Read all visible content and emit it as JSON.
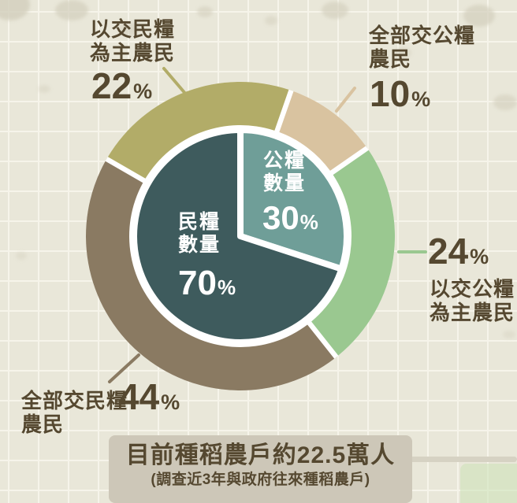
{
  "theme": {
    "bg": "#e9e7d9",
    "grid": "#f6f4ea",
    "text": "#554830",
    "banner_bg": "#cdc7b8",
    "accent_line": "#d6d2c3",
    "corner_patch": "#dbe7cf",
    "divider_white": "#ffffff"
  },
  "chart_data": {
    "type": "pie",
    "subtype": "nested-donut",
    "legend_position": "callouts-around-ring",
    "inner_series": {
      "name": "grain-quantity-share",
      "slices": [
        {
          "label": "公糧數量",
          "label_line1": "公糧",
          "label_line2": "數量",
          "value": 30,
          "unit": "%",
          "color": "#6f9e98",
          "start_angle": 0,
          "end_angle": 108
        },
        {
          "label": "民糧數量",
          "label_line1": "民糧",
          "label_line2": "數量",
          "value": 70,
          "unit": "%",
          "color": "#3e5b5d",
          "start_angle": 108,
          "end_angle": 360
        }
      ]
    },
    "outer_series": {
      "name": "farmer-type-share",
      "start_angle": 19.2,
      "slices": [
        {
          "label": "全部交公糧農民",
          "label_line1": "全部交公糧",
          "label_line2": "農民",
          "value": 10,
          "unit": "%",
          "color": "#d9c3a0"
        },
        {
          "label": "以交公糧為主農民",
          "label_line1": "以交公糧",
          "label_line2": "為主農民",
          "value": 24,
          "unit": "%",
          "color": "#9ac890"
        },
        {
          "label": "全部交民糧農民",
          "label_line1": "全部交民糧",
          "label_line2": "農民",
          "value": 44,
          "unit": "%",
          "color": "#8a7a62"
        },
        {
          "label": "以交民糧為主農民",
          "label_line1": "以交民糧",
          "label_line2": "為主農民",
          "value": 22,
          "unit": "%",
          "color": "#b2ac68"
        }
      ]
    },
    "footer": {
      "title": "目前種稻農戶約22.5萬人",
      "subtitle": "(調查近3年與政府往來種稻農戶)"
    }
  }
}
